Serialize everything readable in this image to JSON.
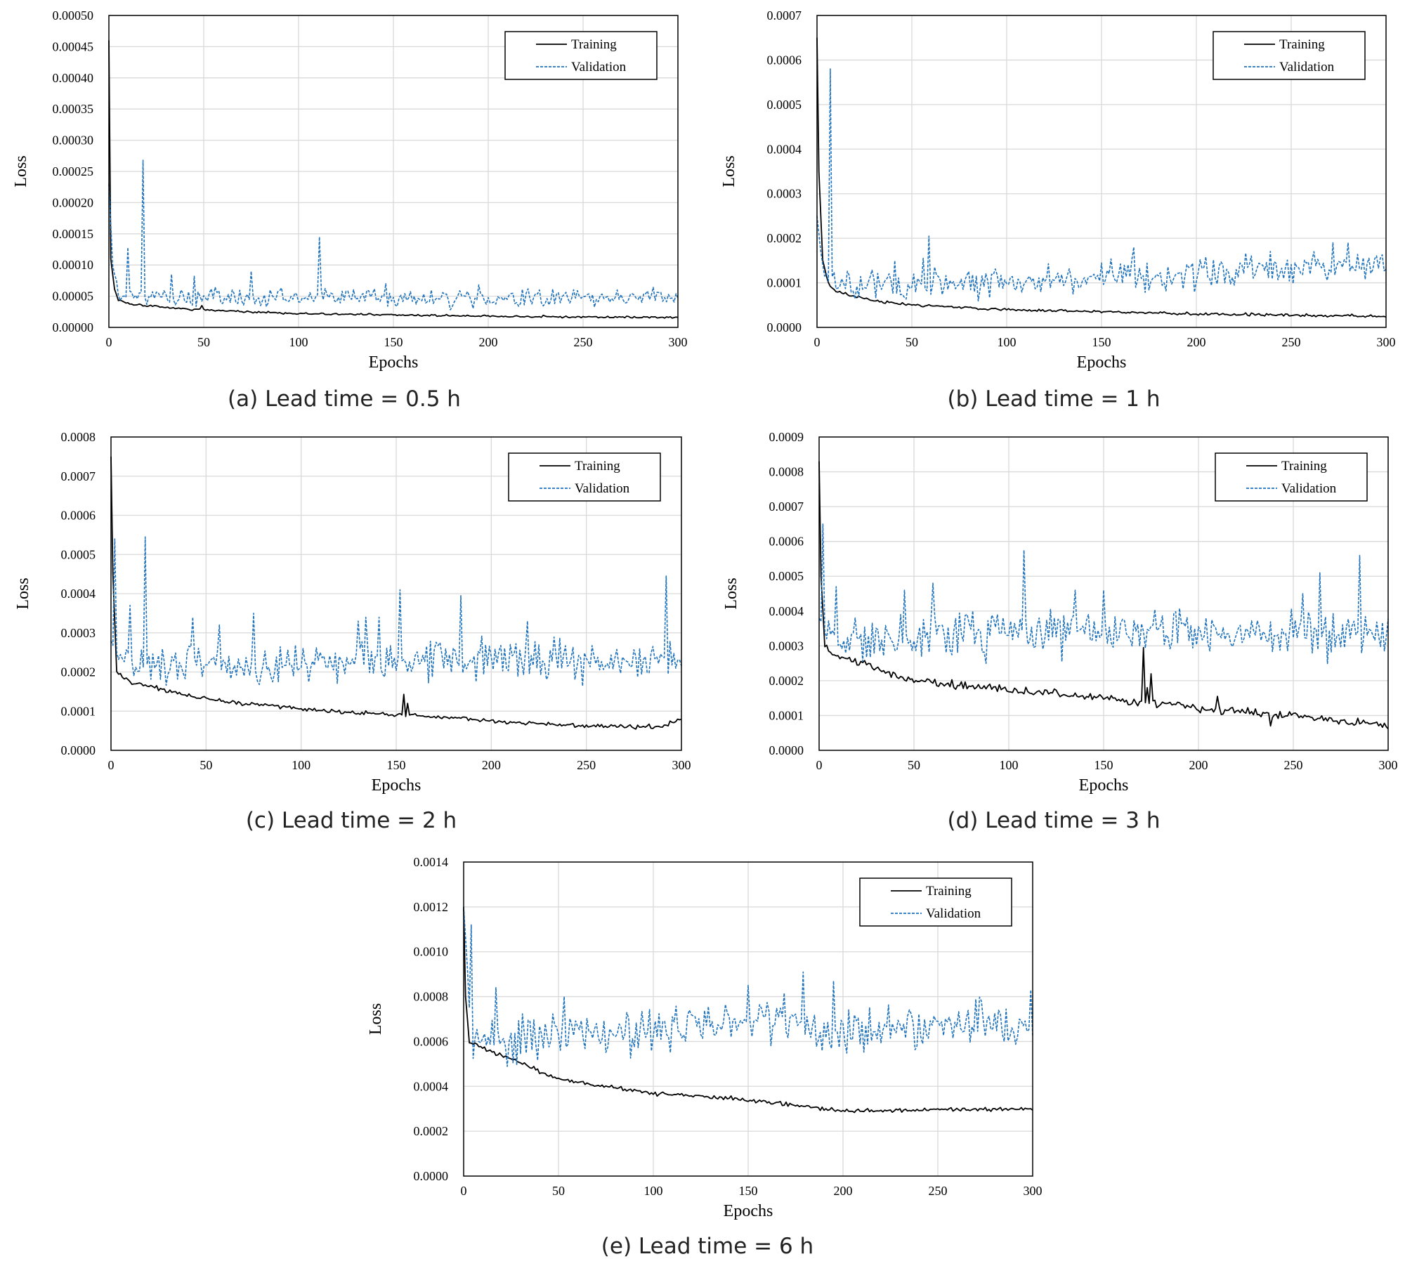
{
  "figure": {
    "colors": {
      "training": "#000000",
      "validation": "#1f73bd",
      "grid": "#d9d9d9",
      "frame": "#000000"
    }
  },
  "chart_data": [
    {
      "id": "a",
      "type": "line",
      "caption": "(a) Lead time = 0.5 h",
      "xlabel": "Epochs",
      "ylabel": "Loss",
      "xlim": [
        0,
        300
      ],
      "ylim": [
        0,
        0.0005
      ],
      "grid": true,
      "xticks": [
        0,
        50,
        100,
        150,
        200,
        250,
        300
      ],
      "xtick_labels": [
        "0",
        "50",
        "100",
        "150",
        "200",
        "250",
        "300"
      ],
      "yticks": [
        0,
        5e-05,
        0.0001,
        0.00015,
        0.0002,
        0.00025,
        0.0003,
        0.00035,
        0.0004,
        0.00045,
        0.0005
      ],
      "ytick_labels": [
        "0.00000",
        "0.00005",
        "0.00010",
        "0.00015",
        "0.00020",
        "0.00025",
        "0.00030",
        "0.00035",
        "0.00040",
        "0.00045",
        "0.00050"
      ],
      "legend_position": "top-right",
      "series": [
        {
          "name": "Training",
          "style": "solid",
          "seed": 11,
          "anchors": [
            [
              0,
              0.00046
            ],
            [
              1,
              0.00011
            ],
            [
              3,
              6e-05
            ],
            [
              5,
              4.5e-05
            ],
            [
              10,
              3.8e-05
            ],
            [
              30,
              3.2e-05
            ],
            [
              50,
              2.8e-05
            ],
            [
              100,
              2.2e-05
            ],
            [
              150,
              2e-05
            ],
            [
              200,
              1.8e-05
            ],
            [
              300,
              1.6e-05
            ]
          ],
          "noise": 8e-07,
          "spikes": [
            [
              49,
              3.5e-05
            ]
          ]
        },
        {
          "name": "Validation",
          "style": "dashed",
          "seed": 12,
          "anchors": [
            [
              0,
              0.00023
            ],
            [
              2,
              0.0001
            ],
            [
              5,
              6e-05
            ],
            [
              15,
              4.8e-05
            ],
            [
              100,
              4.8e-05
            ],
            [
              200,
              4.5e-05
            ],
            [
              300,
              5e-05
            ]
          ],
          "noise": 7e-06,
          "spikes": [
            [
              10,
              0.000128
            ],
            [
              18,
              0.000268
            ],
            [
              33,
              8.5e-05
            ],
            [
              45,
              8.2e-05
            ],
            [
              75,
              9e-05
            ],
            [
              111,
              0.000145
            ],
            [
              146,
              7e-05
            ],
            [
              195,
              6.8e-05
            ]
          ]
        }
      ]
    },
    {
      "id": "b",
      "type": "line",
      "caption": "(b) Lead time = 1 h",
      "xlabel": "Epochs",
      "ylabel": "Loss",
      "xlim": [
        0,
        300
      ],
      "ylim": [
        0,
        0.0007
      ],
      "grid": true,
      "xticks": [
        0,
        50,
        100,
        150,
        200,
        250,
        300
      ],
      "xtick_labels": [
        "0",
        "50",
        "100",
        "150",
        "200",
        "250",
        "300"
      ],
      "yticks": [
        0,
        0.0001,
        0.0002,
        0.0003,
        0.0004,
        0.0005,
        0.0006,
        0.0007
      ],
      "ytick_labels": [
        "0.0000",
        "0.0001",
        "0.0002",
        "0.0003",
        "0.0004",
        "0.0005",
        "0.0006",
        "0.0007"
      ],
      "legend_position": "top-right",
      "series": [
        {
          "name": "Training",
          "style": "solid",
          "seed": 21,
          "anchors": [
            [
              0,
              0.00065
            ],
            [
              1,
              0.00035
            ],
            [
              3,
              0.00015
            ],
            [
              6,
              0.0001
            ],
            [
              10,
              8e-05
            ],
            [
              30,
              6e-05
            ],
            [
              50,
              5e-05
            ],
            [
              100,
              4e-05
            ],
            [
              150,
              3.5e-05
            ],
            [
              200,
              3e-05
            ],
            [
              300,
              2.5e-05
            ]
          ],
          "noise": 1.5e-06,
          "spikes": []
        },
        {
          "name": "Validation",
          "style": "dashed",
          "seed": 22,
          "anchors": [
            [
              0,
              0.00025
            ],
            [
              3,
              0.00013
            ],
            [
              10,
              9.5e-05
            ],
            [
              50,
              0.0001
            ],
            [
              100,
              0.000105
            ],
            [
              150,
              0.00011
            ],
            [
              200,
              0.00012
            ],
            [
              250,
              0.000135
            ],
            [
              300,
              0.00014
            ]
          ],
          "noise": 1.6e-05,
          "spikes": [
            [
              7,
              0.00058
            ],
            [
              41,
              0.00015
            ],
            [
              56,
              0.000155
            ],
            [
              59,
              0.000205
            ],
            [
              167,
              0.00018
            ],
            [
              262,
              0.00017
            ],
            [
              272,
              0.00019
            ],
            [
              280,
              0.00019
            ]
          ]
        }
      ]
    },
    {
      "id": "c",
      "type": "line",
      "caption": "(c) Lead time = 2 h",
      "xlabel": "Epochs",
      "ylabel": "Loss",
      "xlim": [
        0,
        300
      ],
      "ylim": [
        0,
        0.0008
      ],
      "grid": true,
      "xticks": [
        0,
        50,
        100,
        150,
        200,
        250,
        300
      ],
      "xtick_labels": [
        "0",
        "50",
        "100",
        "150",
        "200",
        "250",
        "300"
      ],
      "yticks": [
        0,
        0.0001,
        0.0002,
        0.0003,
        0.0004,
        0.0005,
        0.0006,
        0.0007,
        0.0008
      ],
      "ytick_labels": [
        "0.0000",
        "0.0001",
        "0.0002",
        "0.0003",
        "0.0004",
        "0.0005",
        "0.0006",
        "0.0007",
        "0.0008"
      ],
      "legend_position": "top-right",
      "series": [
        {
          "name": "Training",
          "style": "solid",
          "seed": 31,
          "anchors": [
            [
              0,
              0.00075
            ],
            [
              1,
              0.00045
            ],
            [
              3,
              0.0002
            ],
            [
              10,
              0.000175
            ],
            [
              50,
              0.00013
            ],
            [
              100,
              0.000105
            ],
            [
              150,
              9e-05
            ],
            [
              158,
              9e-05
            ],
            [
              200,
              7.5e-05
            ],
            [
              250,
              6.2e-05
            ],
            [
              290,
              6e-05
            ],
            [
              300,
              8.2e-05
            ]
          ],
          "noise": 2.5e-06,
          "spikes": [
            [
              154,
              0.000143
            ],
            [
              156,
              0.00012
            ]
          ]
        },
        {
          "name": "Validation",
          "style": "dashed",
          "seed": 32,
          "anchors": [
            [
              0,
              0.00028
            ],
            [
              5,
              0.00022
            ],
            [
              30,
              0.00022
            ],
            [
              100,
              0.000225
            ],
            [
              150,
              0.00024
            ],
            [
              200,
              0.000235
            ],
            [
              300,
              0.00023
            ]
          ],
          "noise": 2.5e-05,
          "spikes": [
            [
              2,
              0.00054
            ],
            [
              10,
              0.00037
            ],
            [
              18,
              0.000545
            ],
            [
              43,
              0.00034
            ],
            [
              57,
              0.00032
            ],
            [
              75,
              0.00035
            ],
            [
              130,
              0.00033
            ],
            [
              134,
              0.00034
            ],
            [
              141,
              0.00034
            ],
            [
              152,
              0.00041
            ],
            [
              184,
              0.000395
            ],
            [
              219,
              0.00033
            ],
            [
              292,
              0.000445
            ]
          ]
        }
      ]
    },
    {
      "id": "d",
      "type": "line",
      "caption": "(d) Lead time = 3 h",
      "xlabel": "Epochs",
      "ylabel": "Loss",
      "xlim": [
        0,
        300
      ],
      "ylim": [
        0,
        0.0009
      ],
      "grid": true,
      "xticks": [
        0,
        50,
        100,
        150,
        200,
        250,
        300
      ],
      "xtick_labels": [
        "0",
        "50",
        "100",
        "150",
        "200",
        "250",
        "300"
      ],
      "yticks": [
        0,
        0.0001,
        0.0002,
        0.0003,
        0.0004,
        0.0005,
        0.0006,
        0.0007,
        0.0008,
        0.0009
      ],
      "ytick_labels": [
        "0.0000",
        "0.0001",
        "0.0002",
        "0.0003",
        "0.0004",
        "0.0005",
        "0.0006",
        "0.0007",
        "0.0008",
        "0.0009"
      ],
      "legend_position": "top-right",
      "series": [
        {
          "name": "Training",
          "style": "solid",
          "seed": 41,
          "anchors": [
            [
              0,
              0.00083
            ],
            [
              1,
              0.0005
            ],
            [
              3,
              0.0003
            ],
            [
              10,
              0.00027
            ],
            [
              50,
              0.0002
            ],
            [
              100,
              0.000175
            ],
            [
              150,
              0.00015
            ],
            [
              168,
              0.000135
            ],
            [
              190,
              0.000135
            ],
            [
              200,
              0.00012
            ],
            [
              250,
              0.0001
            ],
            [
              300,
              7e-05
            ]
          ],
          "noise": 5.5e-06,
          "spikes": [
            [
              171,
              0.000295
            ],
            [
              173,
              0.00018
            ],
            [
              175,
              0.00022
            ],
            [
              210,
              0.000155
            ],
            [
              238,
              7e-05
            ]
          ]
        },
        {
          "name": "Validation",
          "style": "dashed",
          "seed": 42,
          "anchors": [
            [
              0,
              0.00038
            ],
            [
              6,
              0.00032
            ],
            [
              30,
              0.00031
            ],
            [
              100,
              0.00034
            ],
            [
              150,
              0.00035
            ],
            [
              200,
              0.00034
            ],
            [
              300,
              0.00033
            ]
          ],
          "noise": 3.2e-05,
          "spikes": [
            [
              2,
              0.00065
            ],
            [
              9,
              0.00047
            ],
            [
              45,
              0.00046
            ],
            [
              60,
              0.00048
            ],
            [
              108,
              0.000575
            ],
            [
              135,
              0.00046
            ],
            [
              150,
              0.00046
            ],
            [
              255,
              0.00045
            ],
            [
              264,
              0.00051
            ],
            [
              285,
              0.00056
            ]
          ]
        }
      ]
    },
    {
      "id": "e",
      "type": "line",
      "caption": "(e) Lead time = 6 h",
      "xlabel": "Epochs",
      "ylabel": "Loss",
      "xlim": [
        0,
        300
      ],
      "ylim": [
        0,
        0.0014
      ],
      "grid": true,
      "xticks": [
        0,
        50,
        100,
        150,
        200,
        250,
        300
      ],
      "xtick_labels": [
        "0",
        "50",
        "100",
        "150",
        "200",
        "250",
        "300"
      ],
      "yticks": [
        0,
        0.0002,
        0.0004,
        0.0006,
        0.0008,
        0.001,
        0.0012,
        0.0014
      ],
      "ytick_labels": [
        "0.0000",
        "0.0002",
        "0.0004",
        "0.0006",
        "0.0008",
        "0.0010",
        "0.0012",
        "0.0014"
      ],
      "legend_position": "top-right",
      "series": [
        {
          "name": "Training",
          "style": "solid",
          "seed": 51,
          "anchors": [
            [
              0,
              0.0012
            ],
            [
              1,
              0.0008
            ],
            [
              3,
              0.0006
            ],
            [
              10,
              0.00057
            ],
            [
              25,
              0.00052
            ],
            [
              50,
              0.00043
            ],
            [
              100,
              0.00037
            ],
            [
              150,
              0.00034
            ],
            [
              200,
              0.00029
            ],
            [
              300,
              0.0003
            ]
          ],
          "noise": 4.5e-06,
          "spikes": []
        },
        {
          "name": "Validation",
          "style": "dashed",
          "seed": 52,
          "anchors": [
            [
              0,
              0.0012
            ],
            [
              4,
              0.00065
            ],
            [
              10,
              0.00058
            ],
            [
              25,
              0.0006
            ],
            [
              50,
              0.00062
            ],
            [
              100,
              0.00065
            ],
            [
              150,
              0.0007
            ],
            [
              200,
              0.00066
            ],
            [
              250,
              0.00066
            ],
            [
              300,
              0.00069
            ]
          ],
          "noise": 5.5e-05,
          "spikes": [
            [
              4,
              0.00112
            ],
            [
              17,
              0.00084
            ],
            [
              53,
              0.0008
            ],
            [
              150,
              0.00085
            ],
            [
              179,
              0.00091
            ],
            [
              195,
              0.00087
            ],
            [
              299,
              0.00083
            ]
          ]
        }
      ]
    }
  ]
}
